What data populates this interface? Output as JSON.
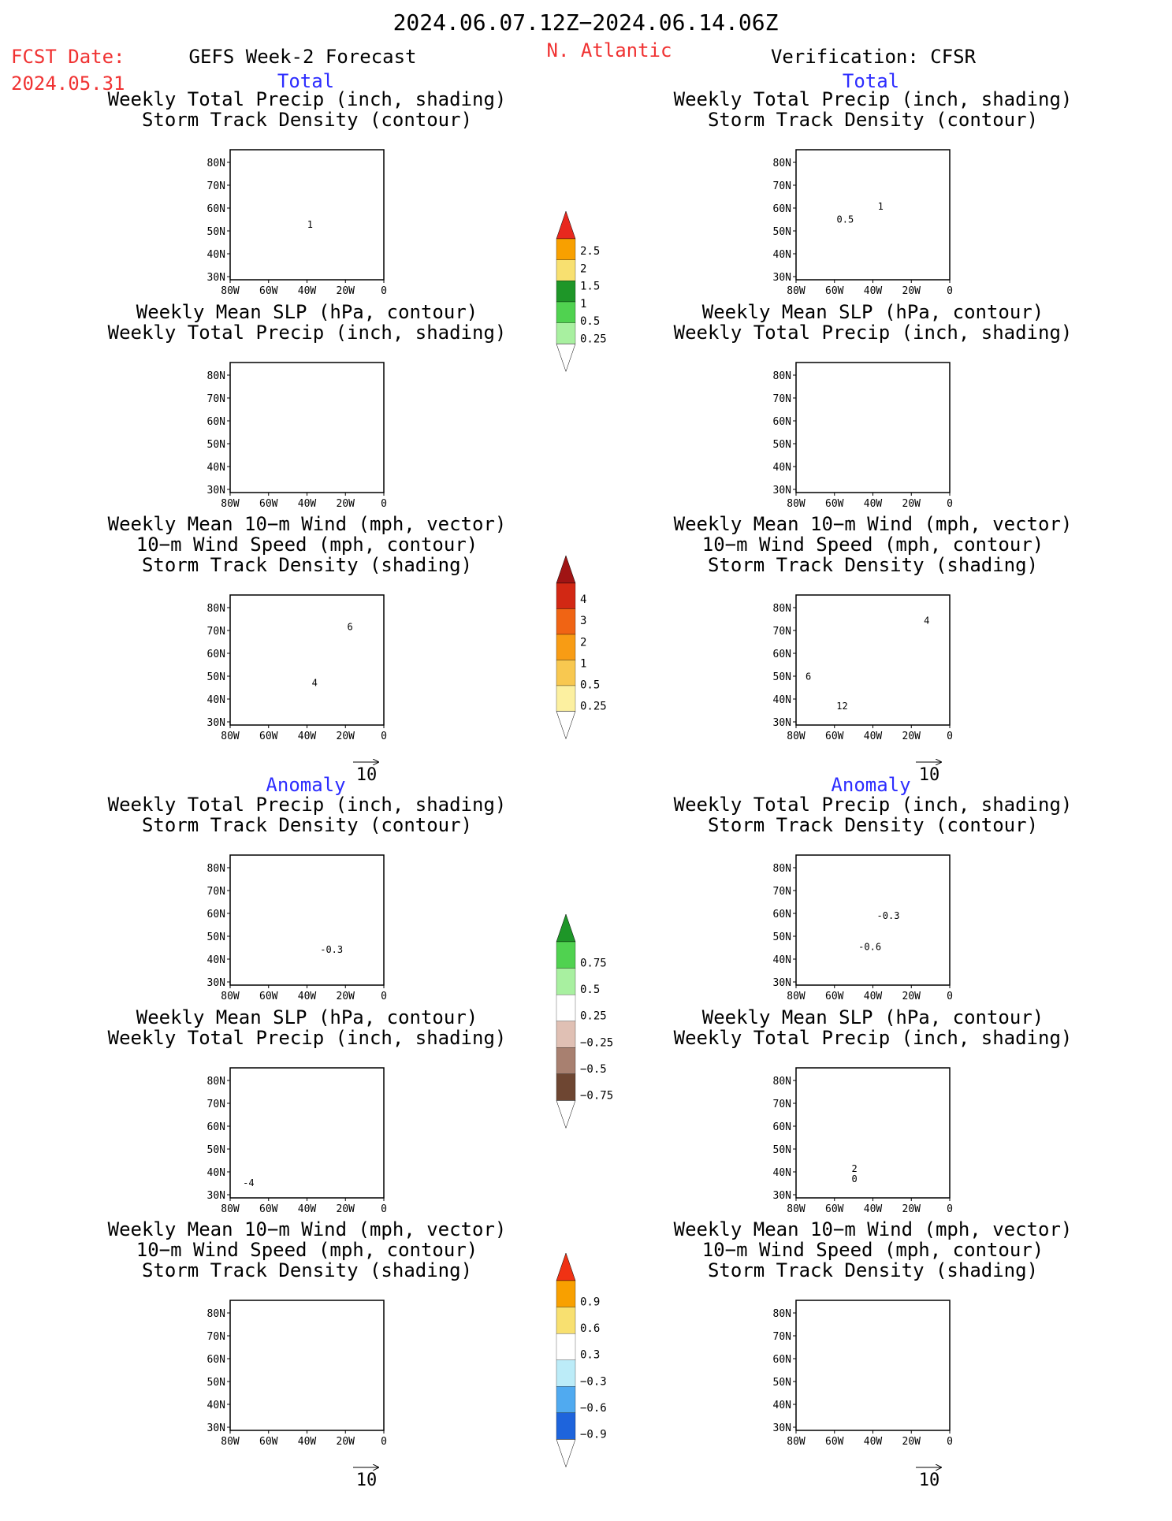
{
  "header": {
    "date_range": "2024.06.07.12Z−2024.06.14.06Z",
    "fcst_label": "FCST Date:",
    "fcst_date": "2024.05.31",
    "left_title": "GEFS Week-2 Forecast",
    "region": "N. Atlantic",
    "right_title": "Verification: CFSR"
  },
  "sections": {
    "total": "Total",
    "anomaly": "Anomaly"
  },
  "panel_titles": {
    "precip_track": [
      "Weekly Total Precip (inch, shading)",
      "Storm Track Density (contour)"
    ],
    "slp_precip": [
      "Weekly Mean SLP (hPa, contour)",
      "Weekly Total Precip (inch, shading)"
    ],
    "wind_track": [
      "Weekly Mean 10−m Wind (mph, vector)",
      "10−m Wind Speed (mph, contour)",
      "Storm Track Density (shading)"
    ]
  },
  "axes": {
    "lat_labels": [
      "80N",
      "70N",
      "60N",
      "50N",
      "40N",
      "30N"
    ],
    "lon_labels": [
      "80W",
      "60W",
      "40W",
      "20W",
      "0"
    ],
    "vector_ref": "10"
  },
  "contour_labels": {
    "fc_precip": "1",
    "ob_precip_a": "1",
    "ob_precip_b": "0.5",
    "fc_wind_a": "4",
    "fc_wind_b": "6",
    "ob_wind_a": "6",
    "ob_wind_b": "4",
    "ob_wind_c": "12",
    "fa_precip": "-0.3",
    "oa_precip_a": "-0.3",
    "oa_precip_b": "-0.6",
    "fa_slp": "-4",
    "oa_slp_a": "2",
    "oa_slp_b": "0"
  },
  "colorbars": [
    {
      "id": "precip",
      "labels": [
        "2.5",
        "2",
        "1.5",
        "1",
        "0.5",
        "0.25"
      ],
      "colors": [
        "#e8281e",
        "#f8a000",
        "#f8e070",
        "#1e9628",
        "#50d250",
        "#a8f0a0"
      ]
    },
    {
      "id": "track",
      "labels": [
        "4",
        "3",
        "2",
        "1",
        "0.5",
        "0.25"
      ],
      "colors": [
        "#a01414",
        "#d22814",
        "#f06414",
        "#f89c14",
        "#f8c850",
        "#fcf0a0"
      ]
    },
    {
      "id": "precip_anom",
      "labels": [
        "0.75",
        "0.5",
        "0.25",
        "−0.25",
        "−0.5",
        "−0.75"
      ],
      "colors": [
        "#1e9628",
        "#50d250",
        "#a8f0a0",
        "#ffffff",
        "#e0c0b4",
        "#a88070",
        "#6e4632"
      ]
    },
    {
      "id": "track_anom",
      "labels": [
        "0.9",
        "0.6",
        "0.3",
        "−0.3",
        "−0.6",
        "−0.9"
      ],
      "colors": [
        "#f03214",
        "#f8a000",
        "#f8e070",
        "#ffffff",
        "#bcecf8",
        "#50aaf0",
        "#1e64dc"
      ]
    }
  ],
  "colors": {
    "red": "#f03232",
    "blue": "#2d2dff"
  }
}
